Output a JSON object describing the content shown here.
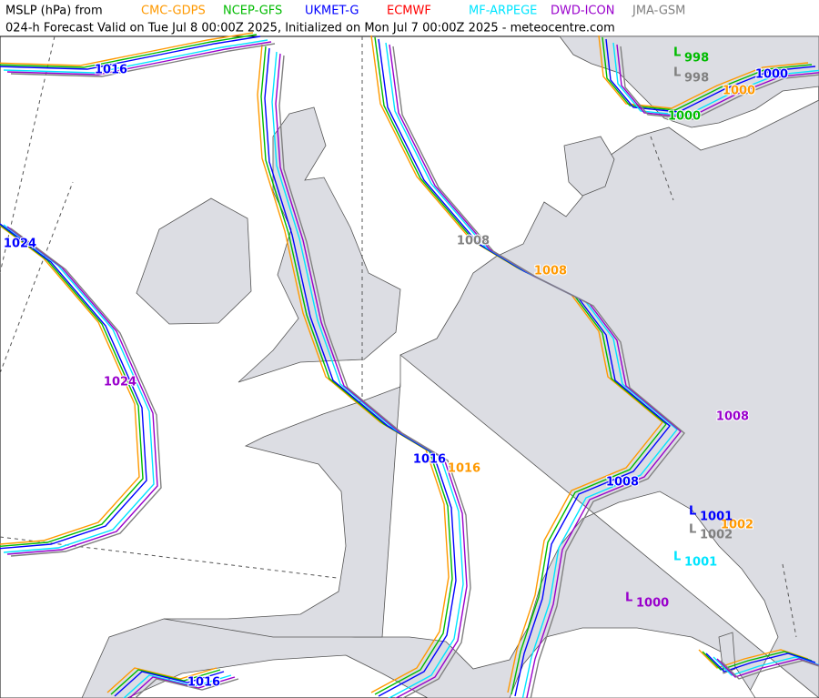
{
  "header": {
    "title": "MSLP (hPa) from",
    "subtitle": "024-h Forecast Valid on Tue Jul 8 00:00Z 2025, Initialized on Mon Jul 7 00:00Z 2025 - meteocentre.com"
  },
  "models": [
    {
      "name": "CMC-GDPS",
      "color": "#ff9900"
    },
    {
      "name": "NCEP-GFS",
      "color": "#00bb00"
    },
    {
      "name": "UKMET-G",
      "color": "#0000ff"
    },
    {
      "name": "ECMWF",
      "color": "#ff0000"
    },
    {
      "name": "MF-ARPEGE",
      "color": "#00e5ff"
    },
    {
      "name": "DWD-ICON",
      "color": "#9900cc"
    },
    {
      "name": "JMA-GSM",
      "color": "#808080"
    }
  ],
  "lows": [
    {
      "symbol": "L",
      "text": "998",
      "color": "#00bb00"
    },
    {
      "symbol": "L",
      "text": "998",
      "color": "#808080"
    },
    {
      "symbol": "L",
      "text": "1001",
      "color": "#0000ff"
    },
    {
      "symbol": "L",
      "text": "1002",
      "color": "#808080"
    },
    {
      "symbol": "L",
      "text": "1001",
      "color": "#00e5ff"
    },
    {
      "symbol": "L",
      "text": "1000",
      "color": "#9900cc"
    }
  ],
  "contour_labels": [
    {
      "text": "1016",
      "color": "#0000ff"
    },
    {
      "text": "1024",
      "color": "#0000ff"
    },
    {
      "text": "1024",
      "color": "#9900cc"
    },
    {
      "text": "1008",
      "color": "#808080"
    },
    {
      "text": "1008",
      "color": "#ff9900"
    },
    {
      "text": "1008",
      "color": "#9900cc"
    },
    {
      "text": "1008",
      "color": "#0000ff"
    },
    {
      "text": "1016",
      "color": "#0000ff"
    },
    {
      "text": "1016",
      "color": "#ff9900"
    },
    {
      "text": "1016",
      "color": "#0000ff"
    },
    {
      "text": "1000",
      "color": "#00bb00"
    },
    {
      "text": "1000",
      "color": "#0000ff"
    },
    {
      "text": "1000",
      "color": "#ff9900"
    },
    {
      "text": "1002",
      "color": "#ff9900"
    }
  ]
}
